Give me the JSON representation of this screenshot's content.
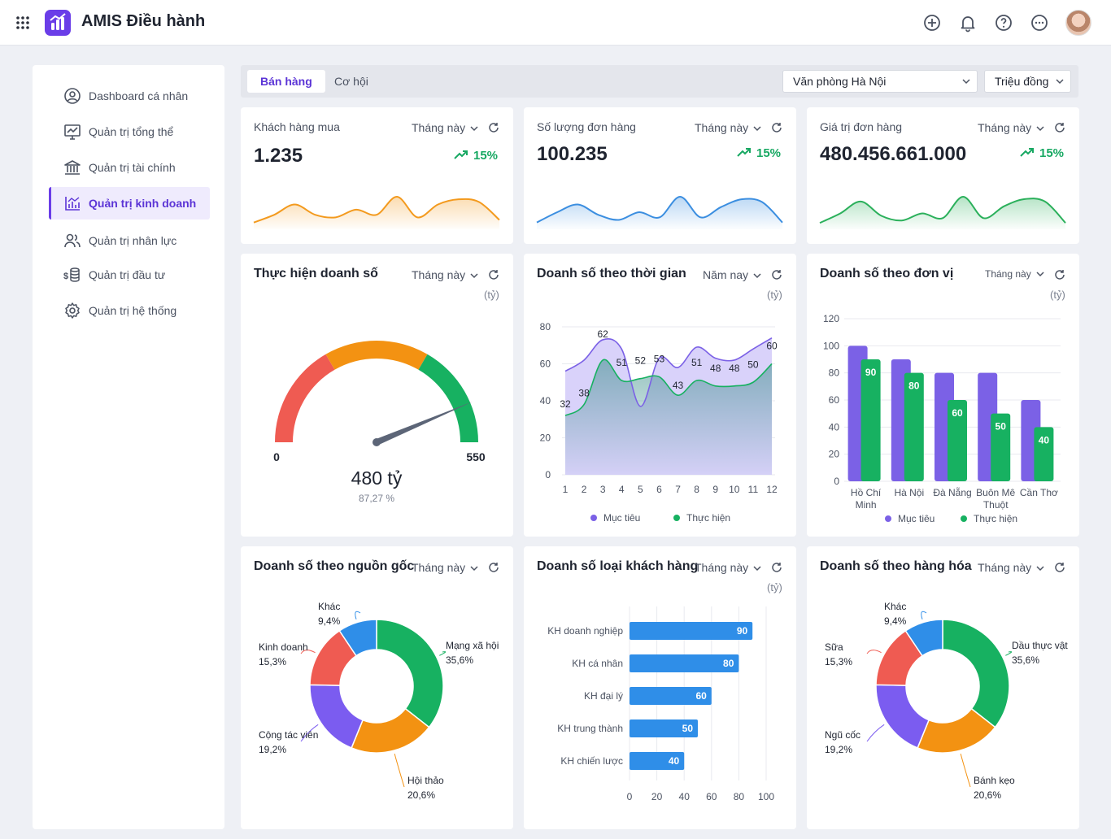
{
  "app": {
    "title": "AMIS Điều hành"
  },
  "sidebar": {
    "items": [
      {
        "label": "Dashboard cá nhân",
        "icon": "user-circle-icon",
        "active": false
      },
      {
        "label": "Quản trị tổng thể",
        "icon": "monitor-chart-icon",
        "active": false
      },
      {
        "label": "Quản trị tài chính",
        "icon": "bank-icon",
        "active": false
      },
      {
        "label": "Quản trị kinh doanh",
        "icon": "bar-chart-icon",
        "active": true
      },
      {
        "label": "Quản trị nhân lực",
        "icon": "users-icon",
        "active": false
      },
      {
        "label": "Quản trị đầu tư",
        "icon": "coins-icon",
        "active": false
      },
      {
        "label": "Quản trị hệ thống",
        "icon": "gear-icon",
        "active": false
      }
    ]
  },
  "tabs": {
    "sales": "Bán hàng",
    "opportunity": "Cơ hội"
  },
  "filters": {
    "office": "Văn phòng Hà Nội",
    "unit": "Triệu đồng"
  },
  "common": {
    "period_month": "Tháng này",
    "period_year": "Năm nay",
    "unit_label": "(tỷ)"
  },
  "kpis": [
    {
      "title": "Khách hàng mua",
      "value": "1.235",
      "trend": "15%",
      "color": "#f39a1e",
      "values": [
        2,
        5,
        9,
        5,
        4,
        7,
        5,
        12,
        4,
        9,
        11,
        10,
        3
      ]
    },
    {
      "title": "Số lượng đơn hàng",
      "value": "100.235",
      "trend": "15%",
      "color": "#3b8ee0",
      "values": [
        2,
        6,
        9,
        5,
        3,
        6,
        4,
        12,
        4,
        8,
        11,
        10,
        2
      ]
    },
    {
      "title": "Giá trị đơn hàng",
      "value": "480.456.661.000",
      "trend": "15%",
      "color": "#2bb05b",
      "values": [
        2,
        6,
        11,
        5,
        3,
        6,
        4,
        13,
        4,
        9,
        12,
        11,
        2
      ]
    }
  ],
  "gauge": {
    "title": "Thực hiện doanh số",
    "min_label": "0",
    "max_label": "550",
    "value_text": "480 tỷ",
    "percent_text": "87,27 %",
    "value": 480,
    "max": 550,
    "colors": [
      "#ef5b52",
      "#f39212",
      "#17b161"
    ]
  },
  "chart_data": [
    {
      "type": "area",
      "title": "Doanh số theo thời gian",
      "x": [
        1,
        2,
        3,
        4,
        5,
        6,
        7,
        8,
        9,
        10,
        11,
        12
      ],
      "series": [
        {
          "name": "Mục tiêu",
          "color": "#7b61e6",
          "values": [
            56,
            62,
            73,
            68,
            37,
            63,
            58,
            69,
            63,
            62,
            68,
            74
          ]
        },
        {
          "name": "Thực hiện",
          "color": "#17b161",
          "values": [
            32,
            38,
            62,
            51,
            52,
            53,
            43,
            51,
            48,
            48,
            50,
            60
          ]
        }
      ],
      "point_labels": [
        32,
        38,
        62,
        51,
        52,
        53,
        43,
        51,
        48,
        48,
        50,
        60
      ],
      "ylim": [
        0,
        80
      ],
      "yticks": [
        0,
        20,
        40,
        60,
        80
      ],
      "legend": "bottom"
    },
    {
      "type": "bar",
      "title": "Doanh số theo đơn vị",
      "categories": [
        "Hồ Chí Minh",
        "Hà Nội",
        "Đà Nẵng",
        "Buôn Mê Thuột",
        "Cần Thơ"
      ],
      "category_lines": [
        [
          "Hồ Chí",
          "Minh"
        ],
        [
          "Hà Nội"
        ],
        [
          "Đà Nẵng"
        ],
        [
          "Buôn Mê",
          "Thuột"
        ],
        [
          "Cần Thơ"
        ]
      ],
      "series": [
        {
          "name": "Mục tiêu",
          "color": "#7b61e6",
          "values": [
            100,
            90,
            80,
            80,
            60
          ]
        },
        {
          "name": "Thực hiện",
          "color": "#17b161",
          "values": [
            90,
            80,
            60,
            50,
            40
          ]
        }
      ],
      "ylim": [
        0,
        120
      ],
      "yticks": [
        0,
        20,
        40,
        60,
        80,
        100,
        120
      ],
      "legend": "bottom"
    },
    {
      "type": "pie",
      "title": "Doanh số theo nguồn gốc",
      "slices": [
        {
          "label": "Mạng xã hội",
          "value": 35.6,
          "text": "35,6%",
          "color": "#17b161"
        },
        {
          "label": "Hội thảo",
          "value": 20.6,
          "text": "20,6%",
          "color": "#f39212"
        },
        {
          "label": "Cộng tác viên",
          "value": 19.2,
          "text": "19,2%",
          "color": "#7b5cf0"
        },
        {
          "label": "Kinh doanh",
          "value": 15.3,
          "text": "15,3%",
          "color": "#ef5b52"
        },
        {
          "label": "Khác",
          "value": 9.4,
          "text": "9,4%",
          "color": "#2f8ee8"
        }
      ]
    },
    {
      "type": "bar",
      "orientation": "horizontal",
      "title": "Doanh số loại khách hàng",
      "categories": [
        "KH doanh nghiệp",
        "KH cá nhân",
        "KH đại lý",
        "KH trung thành",
        "KH chiến lược"
      ],
      "values": [
        90,
        80,
        60,
        50,
        40
      ],
      "color": "#2f8ee8",
      "xlim": [
        0,
        100
      ],
      "xticks": [
        0,
        20,
        40,
        60,
        80,
        100
      ]
    },
    {
      "type": "pie",
      "title": "Doanh số theo hàng hóa",
      "slices": [
        {
          "label": "Dầu thực vật",
          "value": 35.6,
          "text": "35,6%",
          "color": "#17b161"
        },
        {
          "label": "Bánh kẹo",
          "value": 20.6,
          "text": "20,6%",
          "color": "#f39212"
        },
        {
          "label": "Ngũ cốc",
          "value": 19.2,
          "text": "19,2%",
          "color": "#7b5cf0"
        },
        {
          "label": "Sữa",
          "value": 15.3,
          "text": "15,3%",
          "color": "#ef5b52"
        },
        {
          "label": "Khác",
          "value": 9.4,
          "text": "9,4%",
          "color": "#2f8ee8"
        }
      ]
    }
  ]
}
